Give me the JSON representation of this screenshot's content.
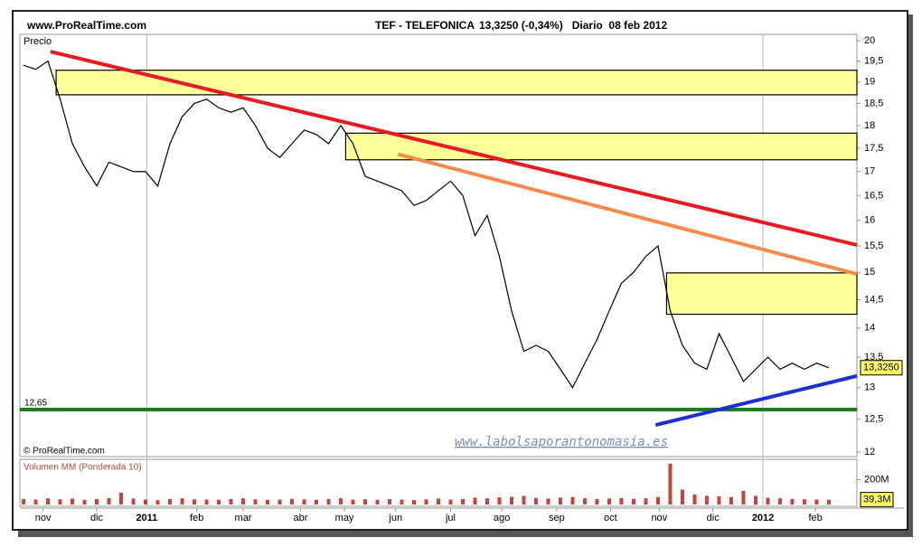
{
  "chart_data": [
    {
      "type": "line",
      "source": "www.ProRealTime.com",
      "title": "TEF - TELEFONICA",
      "subtitle": "13,3250 (-0,34%)   Diario  08 feb 2012",
      "y_label": "Precio",
      "credit": "© ProRealTime.com",
      "watermark": "www.labolsaporantonomasia.es",
      "log_scale": true,
      "color": "#000000",
      "xlim": [
        -0.3,
        68.3
      ],
      "xticks": [
        {
          "value": 1.6,
          "label": "nov"
        },
        {
          "value": 6,
          "label": "dic"
        },
        {
          "value": 10.1,
          "label": "2011"
        },
        {
          "value": 14.2,
          "label": "feb"
        },
        {
          "value": 18,
          "label": "mar"
        },
        {
          "value": 22.7,
          "label": "abr"
        },
        {
          "value": 26.3,
          "label": "may"
        },
        {
          "value": 30.5,
          "label": "jun"
        },
        {
          "value": 35,
          "label": "jul"
        },
        {
          "value": 39.2,
          "label": "ago"
        },
        {
          "value": 43.7,
          "label": "sep"
        },
        {
          "value": 48.1,
          "label": "oct"
        },
        {
          "value": 52.1,
          "label": "nov"
        },
        {
          "value": 56.5,
          "label": "dic"
        },
        {
          "value": 60.6,
          "label": "2012"
        },
        {
          "value": 64.9,
          "label": "feb"
        }
      ],
      "ylim": [
        12,
        20
      ],
      "yticks": [
        12,
        {
          "value": 12.5,
          "label": "12,5"
        },
        13,
        {
          "value": 13.5,
          "label": "13,5"
        },
        14,
        {
          "value": 14.5,
          "label": "14,5"
        },
        15,
        {
          "value": 15.5,
          "label": "15,5"
        },
        16,
        {
          "value": 16.5,
          "label": "16,5"
        },
        17,
        {
          "value": 17.5,
          "label": "17,5"
        },
        18,
        {
          "value": 18.5,
          "label": "18,5"
        },
        19,
        {
          "value": 19.5,
          "label": "19,5"
        },
        20
      ],
      "values": [
        19.4,
        19.3,
        19.5,
        18.6,
        17.6,
        17.1,
        16.7,
        17.2,
        17.1,
        17.0,
        17.0,
        16.7,
        17.6,
        18.2,
        18.5,
        18.6,
        18.4,
        18.3,
        18.4,
        18.0,
        17.5,
        17.3,
        17.6,
        17.9,
        17.8,
        17.6,
        18.0,
        17.6,
        16.9,
        16.8,
        16.7,
        16.6,
        16.3,
        16.4,
        16.6,
        16.8,
        16.5,
        15.7,
        16.1,
        15.3,
        14.3,
        13.6,
        13.7,
        13.6,
        13.3,
        13.0,
        13.4,
        13.8,
        14.3,
        14.8,
        15.0,
        15.3,
        15.5,
        14.3,
        13.7,
        13.4,
        13.3,
        13.9,
        13.5,
        13.1,
        13.3,
        13.5,
        13.3,
        13.4,
        13.3,
        13.4,
        13.325
      ],
      "current": {
        "value": 13.325,
        "label": "13,3250"
      },
      "zones": [
        {
          "x": 2.67,
          "top": 19.28,
          "bottom": 18.7
        },
        {
          "x": 26.4,
          "top": 17.83,
          "bottom": 17.25
        },
        {
          "x": 52.7,
          "top": 14.99,
          "bottom": 14.24
        }
      ],
      "trendlines": [
        {
          "color": "#e8191f",
          "points": [
            [
              2.2,
              19.73
            ],
            [
              68.3,
              15.52
            ]
          ]
        },
        {
          "color": "#f58a4b",
          "points": [
            [
              30.7,
              17.37
            ],
            [
              68.3,
              14.97
            ]
          ]
        },
        {
          "color": "#1c2fd6",
          "points": [
            [
              51.8,
              12.41
            ],
            [
              68.3,
              13.19
            ]
          ]
        }
      ],
      "level": {
        "value": 12.65,
        "label": "12,65",
        "color": "#178017"
      }
    },
    {
      "type": "bar",
      "title": "Volumen MM (Ponderada 10)",
      "color": "#c8423c",
      "ylim": [
        0,
        350
      ],
      "yticks": [
        {
          "value": 200,
          "label": "200M"
        }
      ],
      "values": [
        45,
        40,
        50,
        42,
        48,
        38,
        44,
        52,
        95,
        48,
        40,
        35,
        45,
        50,
        42,
        40,
        38,
        44,
        50,
        42,
        38,
        40,
        46,
        42,
        38,
        45,
        50,
        40,
        42,
        38,
        44,
        40,
        36,
        42,
        48,
        40,
        45,
        55,
        50,
        58,
        62,
        70,
        52,
        48,
        55,
        60,
        50,
        45,
        48,
        52,
        46,
        50,
        60,
        330,
        120,
        80,
        70,
        65,
        60,
        110,
        70,
        55,
        50,
        45,
        42,
        40,
        39.3
      ],
      "current": {
        "value": 39.3,
        "label": "39,3M"
      }
    }
  ]
}
